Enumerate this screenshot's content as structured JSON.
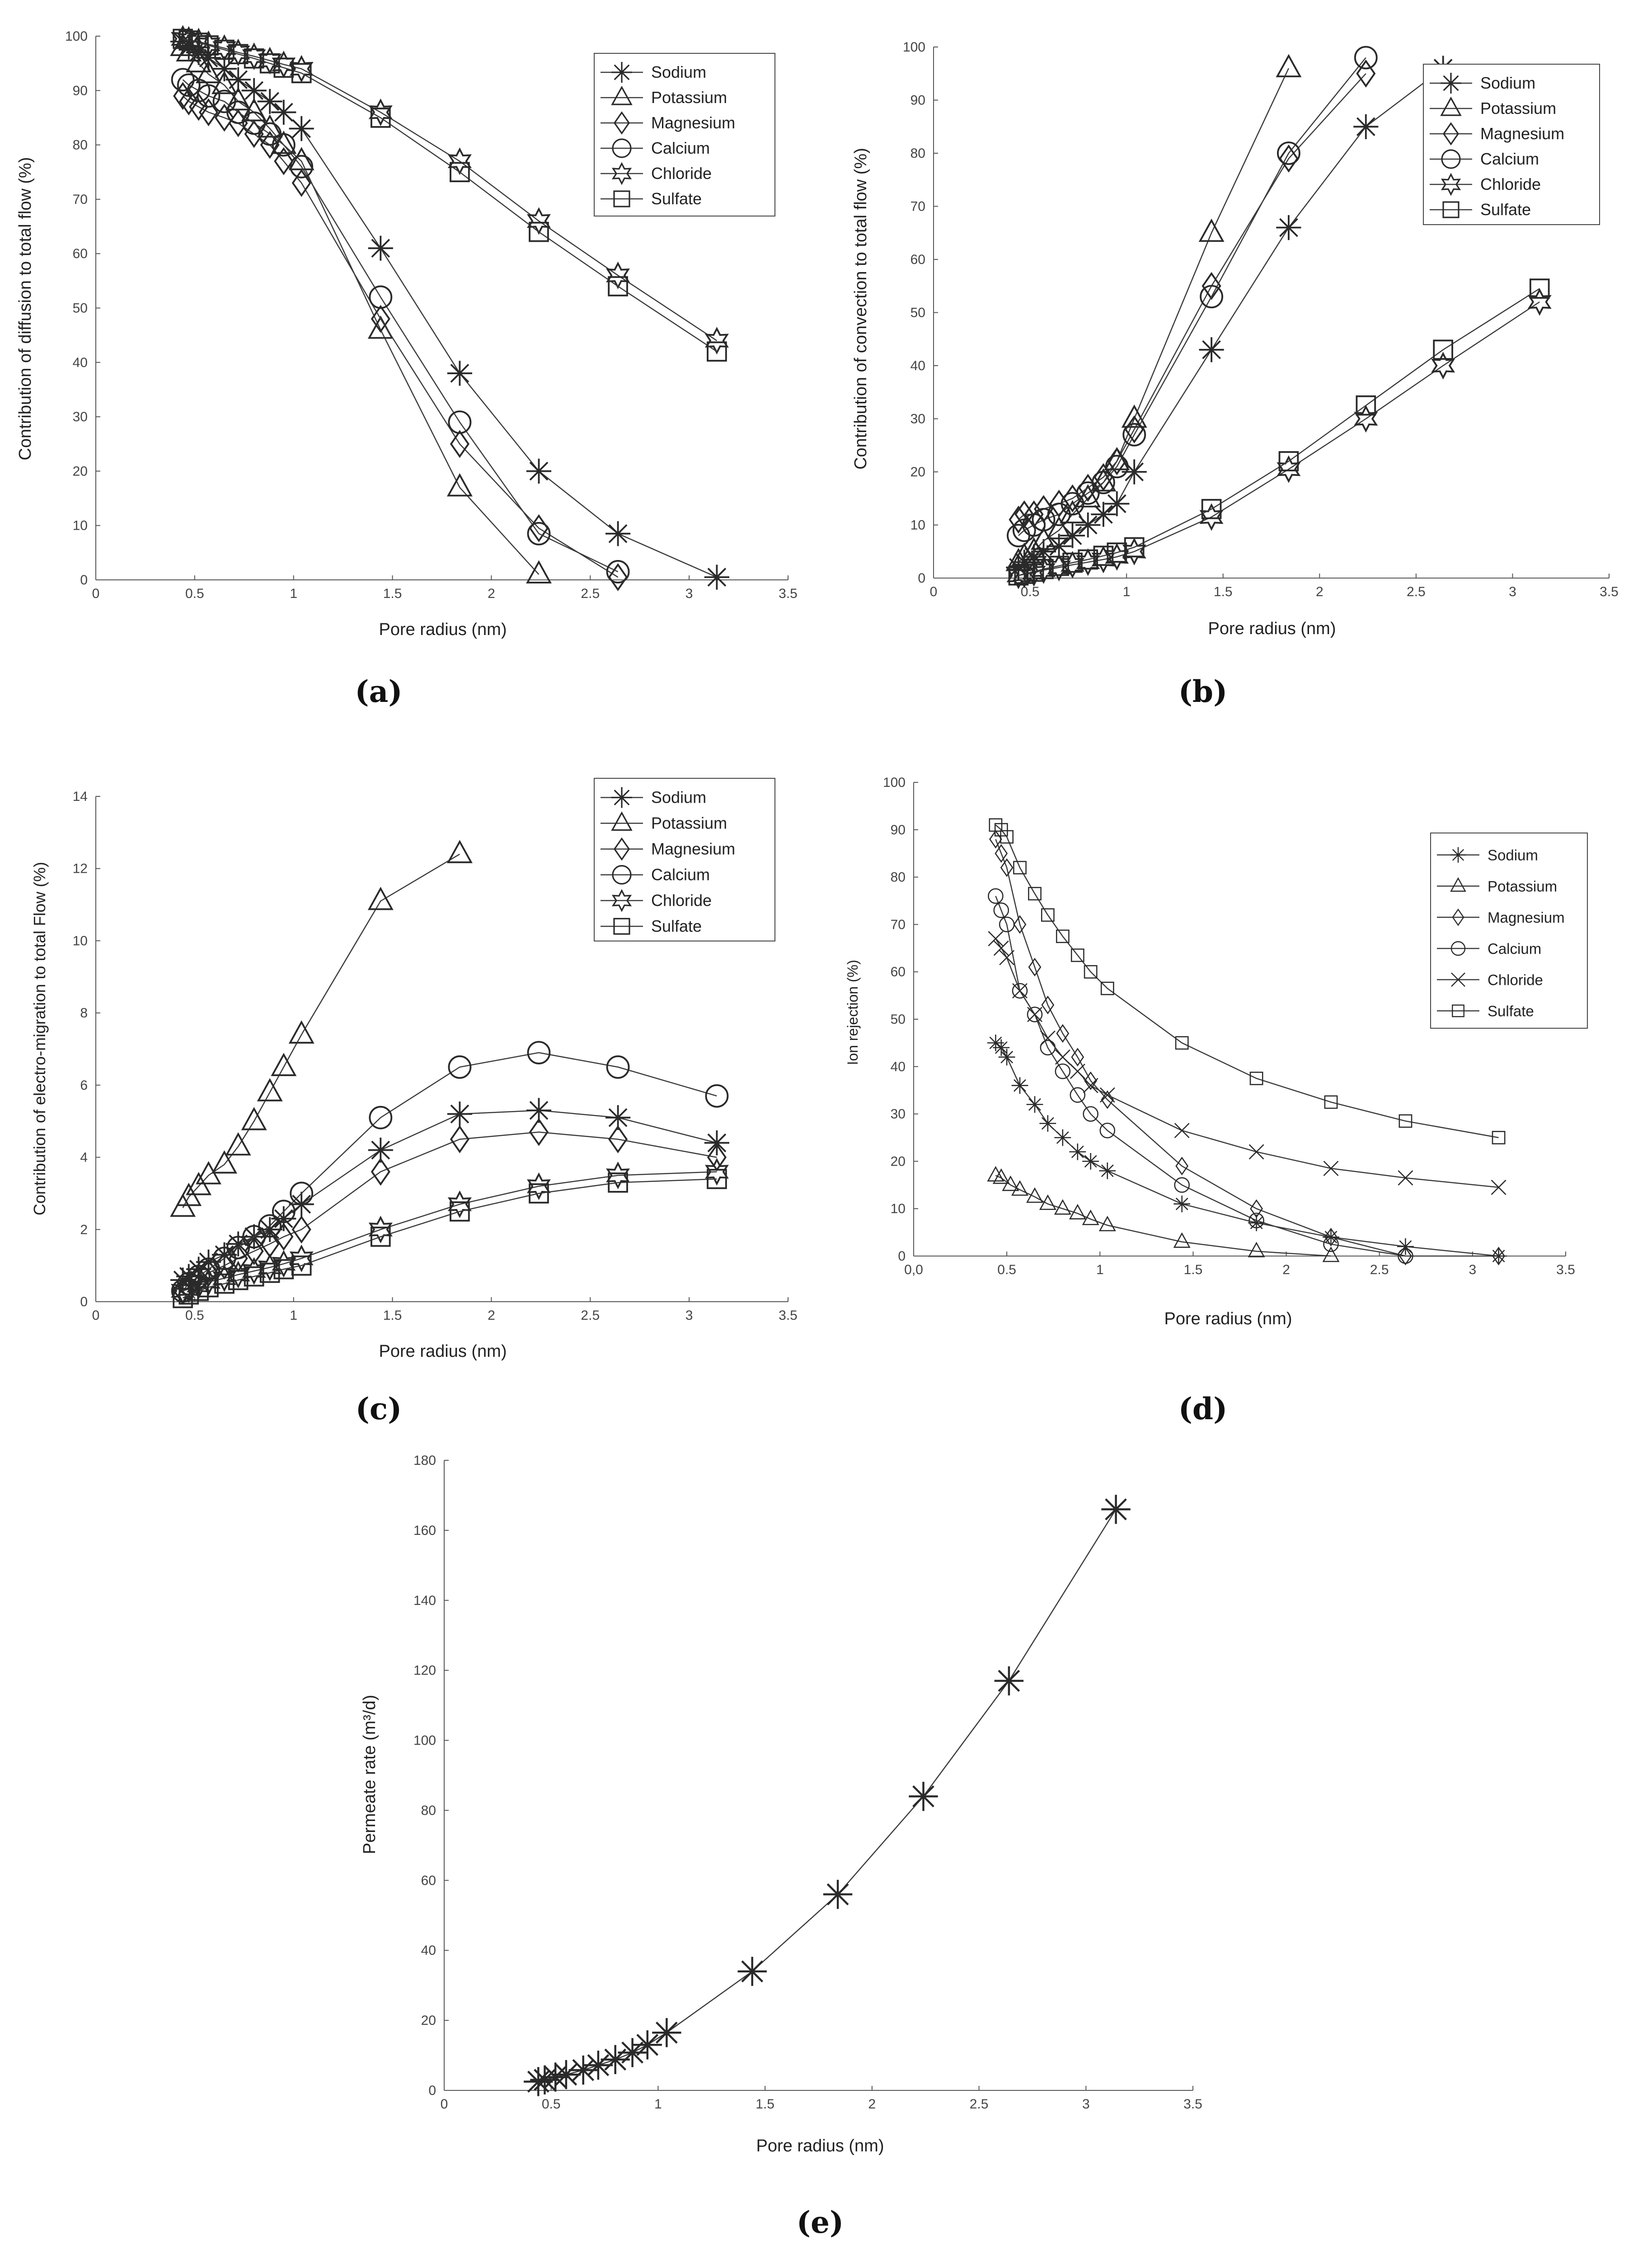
{
  "chart_data": [
    {
      "id": "a",
      "panel_label": "(a)",
      "type": "line",
      "title": "",
      "xlabel": "Pore radius (nm)",
      "ylabel": "Contribution of diffusion to total flow  (%)",
      "xlim": [
        0,
        3.5
      ],
      "ylim": [
        0,
        100
      ],
      "xticks": [
        "0",
        "0.5",
        "1",
        "1.5",
        "2",
        "2.5",
        "3",
        "3.5"
      ],
      "yticks": [
        "0",
        "10",
        "20",
        "30",
        "40",
        "50",
        "60",
        "70",
        "80",
        "90",
        "100"
      ],
      "legend_position": "top-right",
      "series": [
        {
          "name": "Sodium",
          "marker": "star",
          "x": [
            0.44,
            0.47,
            0.52,
            0.57,
            0.65,
            0.72,
            0.8,
            0.88,
            0.95,
            1.04,
            1.44,
            1.84,
            2.24,
            2.64,
            3.14
          ],
          "y": [
            99,
            98,
            97,
            96,
            94,
            92,
            90,
            88,
            86,
            83,
            61,
            38,
            20,
            8.5,
            0.5
          ]
        },
        {
          "name": "Potassium",
          "marker": "triangle",
          "x": [
            0.44,
            0.47,
            0.52,
            0.57,
            0.65,
            0.72,
            0.8,
            0.88,
            0.95,
            1.04,
            1.44,
            1.84,
            2.24
          ],
          "y": [
            98,
            97,
            95,
            93,
            91,
            88,
            86,
            83,
            80,
            77,
            46,
            17,
            1
          ]
        },
        {
          "name": "Magnesium",
          "marker": "diamond",
          "x": [
            0.44,
            0.47,
            0.52,
            0.57,
            0.65,
            0.72,
            0.8,
            0.88,
            0.95,
            1.04,
            1.44,
            1.84,
            2.24,
            2.64
          ],
          "y": [
            89,
            88,
            87,
            86,
            85,
            84,
            82,
            80,
            77,
            73,
            48,
            25,
            9.5,
            0.5
          ]
        },
        {
          "name": "Calcium",
          "marker": "circle",
          "x": [
            0.44,
            0.47,
            0.52,
            0.57,
            0.65,
            0.72,
            0.8,
            0.88,
            0.95,
            1.04,
            1.44,
            1.84,
            2.24,
            2.64
          ],
          "y": [
            92,
            91,
            90,
            89,
            88,
            86,
            84,
            82,
            80,
            76,
            52,
            29,
            8.5,
            1.5
          ]
        },
        {
          "name": "Chloride",
          "marker": "hexagram",
          "x": [
            0.44,
            0.47,
            0.52,
            0.57,
            0.65,
            0.72,
            0.8,
            0.88,
            0.95,
            1.04,
            1.44,
            1.84,
            2.24,
            2.64,
            3.14
          ],
          "y": [
            99.5,
            99.3,
            99,
            98.5,
            97.8,
            97,
            96.3,
            95.5,
            94.8,
            94,
            86,
            77,
            66,
            56,
            44
          ]
        },
        {
          "name": "Sulfate",
          "marker": "square",
          "x": [
            0.44,
            0.47,
            0.52,
            0.57,
            0.65,
            0.72,
            0.8,
            0.88,
            0.95,
            1.04,
            1.44,
            1.84,
            2.24,
            2.64,
            3.14
          ],
          "y": [
            99.5,
            99.2,
            98.8,
            98.3,
            97.5,
            96.7,
            95.9,
            95,
            94.2,
            93.2,
            85,
            75,
            64,
            54,
            42
          ]
        }
      ]
    },
    {
      "id": "b",
      "panel_label": "(b)",
      "type": "line",
      "title": "",
      "xlabel": "Pore radius (nm)",
      "ylabel": "Contribution of convection to total flow  (%)",
      "xlim": [
        0,
        3.5
      ],
      "ylim": [
        0,
        100
      ],
      "xticks": [
        "0",
        "0.5",
        "1",
        "1.5",
        "2",
        "2.5",
        "3",
        "3.5"
      ],
      "yticks": [
        "0",
        "10",
        "20",
        "30",
        "40",
        "50",
        "60",
        "70",
        "80",
        "90",
        "100"
      ],
      "legend_position": "top-right",
      "series": [
        {
          "name": "Sodium",
          "marker": "star",
          "x": [
            0.44,
            0.47,
            0.52,
            0.57,
            0.65,
            0.72,
            0.8,
            0.88,
            0.95,
            1.04,
            1.44,
            1.84,
            2.24,
            2.64
          ],
          "y": [
            2,
            3,
            4,
            5,
            6,
            8,
            10,
            12,
            14,
            20,
            43,
            66,
            85,
            96
          ]
        },
        {
          "name": "Potassium",
          "marker": "triangle",
          "x": [
            0.44,
            0.47,
            0.52,
            0.57,
            0.65,
            0.72,
            0.8,
            0.88,
            0.95,
            1.04,
            1.44,
            1.84
          ],
          "y": [
            3,
            4,
            5,
            7,
            9,
            12,
            15,
            18,
            22,
            30,
            65,
            96
          ]
        },
        {
          "name": "Magnesium",
          "marker": "diamond",
          "x": [
            0.44,
            0.47,
            0.52,
            0.57,
            0.65,
            0.72,
            0.8,
            0.88,
            0.95,
            1.04,
            1.44,
            1.84,
            2.24
          ],
          "y": [
            11,
            12,
            12,
            13,
            14,
            15,
            17,
            19,
            22,
            28,
            55,
            79,
            95
          ]
        },
        {
          "name": "Calcium",
          "marker": "circle",
          "x": [
            0.44,
            0.47,
            0.52,
            0.57,
            0.65,
            0.72,
            0.8,
            0.88,
            0.95,
            1.04,
            1.44,
            1.84,
            2.24
          ],
          "y": [
            8,
            9,
            10,
            11,
            12,
            14,
            16,
            18,
            21,
            27,
            53,
            80,
            98
          ]
        },
        {
          "name": "Chloride",
          "marker": "hexagram",
          "x": [
            0.44,
            0.47,
            0.52,
            0.57,
            0.65,
            0.72,
            0.8,
            0.88,
            0.95,
            1.04,
            1.44,
            1.84,
            2.24,
            2.64,
            3.14
          ],
          "y": [
            0.5,
            0.7,
            1,
            1.5,
            2,
            2.5,
            3,
            3.5,
            4,
            5,
            11.5,
            20.5,
            30,
            40,
            52
          ]
        },
        {
          "name": "Sulfate",
          "marker": "square",
          "x": [
            0.44,
            0.47,
            0.52,
            0.57,
            0.65,
            0.72,
            0.8,
            0.88,
            0.95,
            1.04,
            1.44,
            1.84,
            2.24,
            2.64,
            3.14
          ],
          "y": [
            0.5,
            0.8,
            1.2,
            1.7,
            2.3,
            2.9,
            3.5,
            4.2,
            4.8,
            5.8,
            13,
            22,
            32.5,
            43,
            54.5
          ]
        }
      ]
    },
    {
      "id": "c",
      "panel_label": "(c)",
      "type": "line",
      "title": "",
      "xlabel": "Pore radius (nm)",
      "ylabel": "Contribution of electro-migration to total Flow (%)",
      "xlim": [
        0,
        3.5
      ],
      "ylim": [
        0,
        14
      ],
      "xticks": [
        "0",
        "0.5",
        "1",
        "1.5",
        "2",
        "2.5",
        "3",
        "3.5"
      ],
      "yticks": [
        "0",
        "2",
        "4",
        "6",
        "8",
        "10",
        "12",
        "14"
      ],
      "legend_position": "top-right",
      "series": [
        {
          "name": "Sodium",
          "marker": "star",
          "x": [
            0.44,
            0.47,
            0.52,
            0.57,
            0.65,
            0.72,
            0.8,
            0.88,
            0.95,
            1.04,
            1.44,
            1.84,
            2.24,
            2.64,
            3.14
          ],
          "y": [
            0.6,
            0.7,
            0.9,
            1.1,
            1.3,
            1.6,
            1.8,
            2.0,
            2.3,
            2.7,
            4.2,
            5.2,
            5.3,
            5.1,
            4.4
          ]
        },
        {
          "name": "Potassium",
          "marker": "triangle",
          "x": [
            0.44,
            0.47,
            0.52,
            0.57,
            0.65,
            0.72,
            0.8,
            0.88,
            0.95,
            1.04,
            1.44,
            1.84
          ],
          "y": [
            2.6,
            2.9,
            3.2,
            3.5,
            3.8,
            4.3,
            5.0,
            5.8,
            6.5,
            7.4,
            11.1,
            12.4
          ]
        },
        {
          "name": "Magnesium",
          "marker": "diamond",
          "x": [
            0.44,
            0.47,
            0.52,
            0.57,
            0.65,
            0.72,
            0.8,
            0.88,
            0.95,
            1.04,
            1.44,
            1.84,
            2.24,
            2.64,
            3.14
          ],
          "y": [
            0.3,
            0.4,
            0.6,
            0.8,
            1.0,
            1.2,
            1.4,
            1.6,
            1.8,
            2.0,
            3.6,
            4.5,
            4.7,
            4.5,
            4.0
          ]
        },
        {
          "name": "Calcium",
          "marker": "circle",
          "x": [
            0.44,
            0.47,
            0.52,
            0.57,
            0.65,
            0.72,
            0.8,
            0.88,
            0.95,
            1.04,
            1.44,
            1.84,
            2.24,
            2.64,
            3.14
          ],
          "y": [
            0.3,
            0.5,
            0.7,
            0.9,
            1.2,
            1.5,
            1.8,
            2.1,
            2.5,
            3.0,
            5.1,
            6.5,
            6.9,
            6.5,
            5.7
          ]
        },
        {
          "name": "Chloride",
          "marker": "hexagram",
          "x": [
            0.44,
            0.47,
            0.52,
            0.57,
            0.65,
            0.72,
            0.8,
            0.88,
            0.95,
            1.04,
            1.44,
            1.84,
            2.24,
            2.64,
            3.14
          ],
          "y": [
            0.3,
            0.35,
            0.45,
            0.55,
            0.65,
            0.75,
            0.85,
            0.95,
            1.05,
            1.2,
            2.0,
            2.7,
            3.2,
            3.5,
            3.6
          ]
        },
        {
          "name": "Sulfate",
          "marker": "square",
          "x": [
            0.44,
            0.47,
            0.52,
            0.57,
            0.65,
            0.72,
            0.8,
            0.88,
            0.95,
            1.04,
            1.44,
            1.84,
            2.24,
            2.64,
            3.14
          ],
          "y": [
            0.1,
            0.2,
            0.3,
            0.4,
            0.5,
            0.6,
            0.7,
            0.8,
            0.9,
            1.0,
            1.8,
            2.5,
            3.0,
            3.3,
            3.4
          ]
        }
      ]
    },
    {
      "id": "d",
      "panel_label": "(d)",
      "type": "line",
      "title": "",
      "xlabel": "Pore radius (nm)",
      "ylabel": "Ion rejection (%)",
      "xlim": [
        0,
        3.5
      ],
      "ylim": [
        0,
        100
      ],
      "xticks": [
        "0,0",
        "0.5",
        "1",
        "1.5",
        "2",
        "2.5",
        "3",
        "3.5"
      ],
      "yticks": [
        "0",
        "10",
        "20",
        "30",
        "40",
        "50",
        "60",
        "70",
        "80",
        "90",
        "100"
      ],
      "legend_position": "top-right",
      "series": [
        {
          "name": "Sodium",
          "marker": "star",
          "x": [
            0.44,
            0.47,
            0.5,
            0.57,
            0.65,
            0.72,
            0.8,
            0.88,
            0.95,
            1.04,
            1.44,
            1.84,
            2.24,
            2.64,
            3.14
          ],
          "y": [
            45,
            44,
            42,
            36,
            32,
            28,
            25,
            22,
            20,
            18,
            11,
            7,
            4,
            2,
            0
          ]
        },
        {
          "name": "Potassium",
          "marker": "triangle",
          "x": [
            0.44,
            0.47,
            0.52,
            0.57,
            0.65,
            0.72,
            0.8,
            0.88,
            0.95,
            1.04,
            1.44,
            1.84,
            2.24
          ],
          "y": [
            17,
            16.5,
            15,
            14,
            12.5,
            11,
            10,
            9,
            7.8,
            6.5,
            3,
            1,
            0
          ]
        },
        {
          "name": "Magnesium",
          "marker": "diamond",
          "x": [
            0.44,
            0.47,
            0.5,
            0.57,
            0.65,
            0.72,
            0.8,
            0.88,
            0.95,
            1.04,
            1.44,
            1.84,
            2.24,
            2.64,
            3.14
          ],
          "y": [
            88,
            85,
            82,
            70,
            61,
            53,
            47,
            42,
            37,
            33,
            19,
            10,
            4,
            0,
            0
          ]
        },
        {
          "name": "Calcium",
          "marker": "circle",
          "x": [
            0.44,
            0.47,
            0.5,
            0.57,
            0.65,
            0.72,
            0.8,
            0.88,
            0.95,
            1.04,
            1.44,
            1.84,
            2.24,
            2.64
          ],
          "y": [
            76,
            73,
            70,
            56,
            51,
            44,
            39,
            34,
            30,
            26.5,
            15,
            7.5,
            2.5,
            0
          ]
        },
        {
          "name": "Chloride",
          "marker": "x",
          "x": [
            0.44,
            0.47,
            0.5,
            0.57,
            0.65,
            0.72,
            0.8,
            0.88,
            0.95,
            1.04,
            1.44,
            1.84,
            2.24,
            2.64,
            3.14
          ],
          "y": [
            67,
            65,
            63,
            56,
            51,
            46,
            42,
            39,
            36,
            34,
            26.5,
            22,
            18.5,
            16.5,
            14.5
          ]
        },
        {
          "name": "Sulfate",
          "marker": "square",
          "x": [
            0.44,
            0.47,
            0.5,
            0.57,
            0.65,
            0.72,
            0.8,
            0.88,
            0.95,
            1.04,
            1.44,
            1.84,
            2.24,
            2.64,
            3.14
          ],
          "y": [
            91,
            90,
            88.5,
            82,
            76.5,
            72,
            67.5,
            63.5,
            60,
            56.5,
            45,
            37.5,
            32.5,
            28.5,
            25
          ]
        }
      ]
    },
    {
      "id": "e",
      "panel_label": "(e)",
      "type": "line",
      "title": "",
      "xlabel": "Pore radius (nm)",
      "ylabel": "Permeate rate  (m³/d)",
      "xlim": [
        0,
        3.5
      ],
      "ylim": [
        0,
        180
      ],
      "xticks": [
        "0",
        "0.5",
        "1",
        "1.5",
        "2",
        "2.5",
        "3",
        "3.5"
      ],
      "yticks": [
        "0",
        "20",
        "40",
        "60",
        "80",
        "100",
        "120",
        "140",
        "160",
        "180"
      ],
      "legend_position": "none",
      "series": [
        {
          "name": "Permeate rate",
          "marker": "star",
          "x": [
            0.44,
            0.47,
            0.52,
            0.57,
            0.65,
            0.72,
            0.8,
            0.88,
            0.95,
            1.04,
            1.44,
            1.84,
            2.24,
            2.64,
            3.14
          ],
          "y": [
            2.5,
            3,
            3.8,
            4.5,
            5.8,
            7.2,
            8.8,
            10.8,
            13,
            16.5,
            34,
            56,
            84,
            117,
            166
          ]
        }
      ]
    }
  ]
}
